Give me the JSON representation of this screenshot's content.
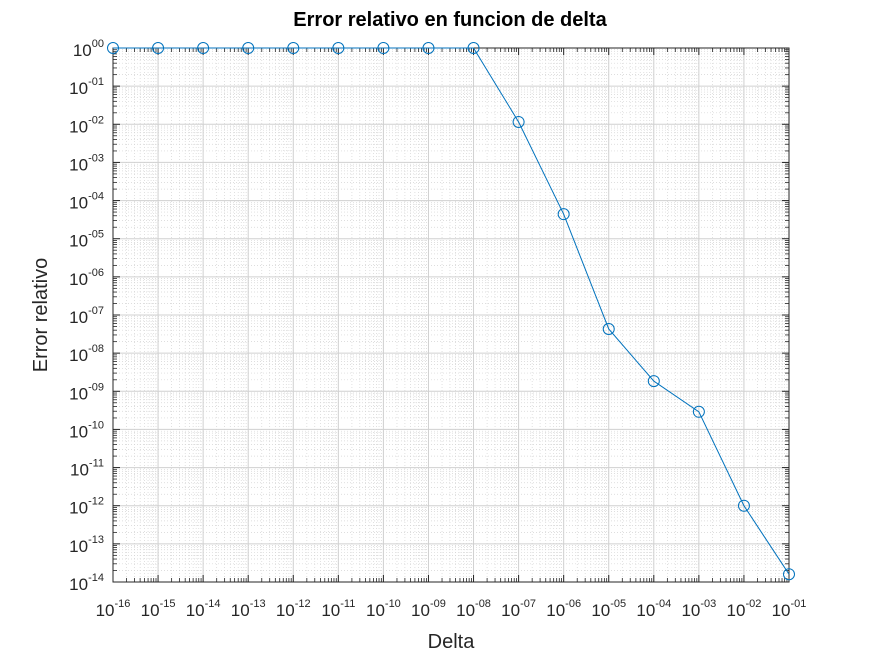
{
  "chart_data": {
    "type": "line",
    "title": "Error relativo en funcion de delta",
    "xlabel": "Delta",
    "ylabel": "Error relativo",
    "xscale": "log",
    "yscale": "log",
    "xlim": [
      1e-16,
      0.1
    ],
    "ylim": [
      1e-14,
      1
    ],
    "grid": true,
    "minor_grid": true,
    "x_ticks": [
      {
        "base": "10",
        "exp": "-16"
      },
      {
        "base": "10",
        "exp": "-15"
      },
      {
        "base": "10",
        "exp": "-14"
      },
      {
        "base": "10",
        "exp": "-13"
      },
      {
        "base": "10",
        "exp": "-12"
      },
      {
        "base": "10",
        "exp": "-11"
      },
      {
        "base": "10",
        "exp": "-10"
      },
      {
        "base": "10",
        "exp": "-09"
      },
      {
        "base": "10",
        "exp": "-08"
      },
      {
        "base": "10",
        "exp": "-07"
      },
      {
        "base": "10",
        "exp": "-06"
      },
      {
        "base": "10",
        "exp": "-05"
      },
      {
        "base": "10",
        "exp": "-04"
      },
      {
        "base": "10",
        "exp": "-03"
      },
      {
        "base": "10",
        "exp": "-02"
      },
      {
        "base": "10",
        "exp": "-01"
      }
    ],
    "y_ticks": [
      {
        "base": "10",
        "exp": "00"
      },
      {
        "base": "10",
        "exp": "-01"
      },
      {
        "base": "10",
        "exp": "-02"
      },
      {
        "base": "10",
        "exp": "-03"
      },
      {
        "base": "10",
        "exp": "-04"
      },
      {
        "base": "10",
        "exp": "-05"
      },
      {
        "base": "10",
        "exp": "-06"
      },
      {
        "base": "10",
        "exp": "-07"
      },
      {
        "base": "10",
        "exp": "-08"
      },
      {
        "base": "10",
        "exp": "-09"
      },
      {
        "base": "10",
        "exp": "-10"
      },
      {
        "base": "10",
        "exp": "-11"
      },
      {
        "base": "10",
        "exp": "-12"
      },
      {
        "base": "10",
        "exp": "-13"
      },
      {
        "base": "10",
        "exp": "-14"
      }
    ],
    "series": [
      {
        "name": "Error relativo",
        "color": "#0072BD",
        "marker": "circle",
        "x": [
          1e-16,
          1e-15,
          1e-14,
          1e-13,
          1e-12,
          1e-11,
          1e-10,
          1e-09,
          1e-08,
          1e-07,
          1e-06,
          1e-05,
          0.0001,
          0.001,
          0.01,
          0.1
        ],
        "y": [
          1,
          1,
          1,
          1,
          1,
          1,
          1,
          1,
          1,
          0.0115,
          4.4e-05,
          4.3e-08,
          1.85e-09,
          2.9e-10,
          1e-12,
          1.6e-14
        ]
      }
    ]
  }
}
